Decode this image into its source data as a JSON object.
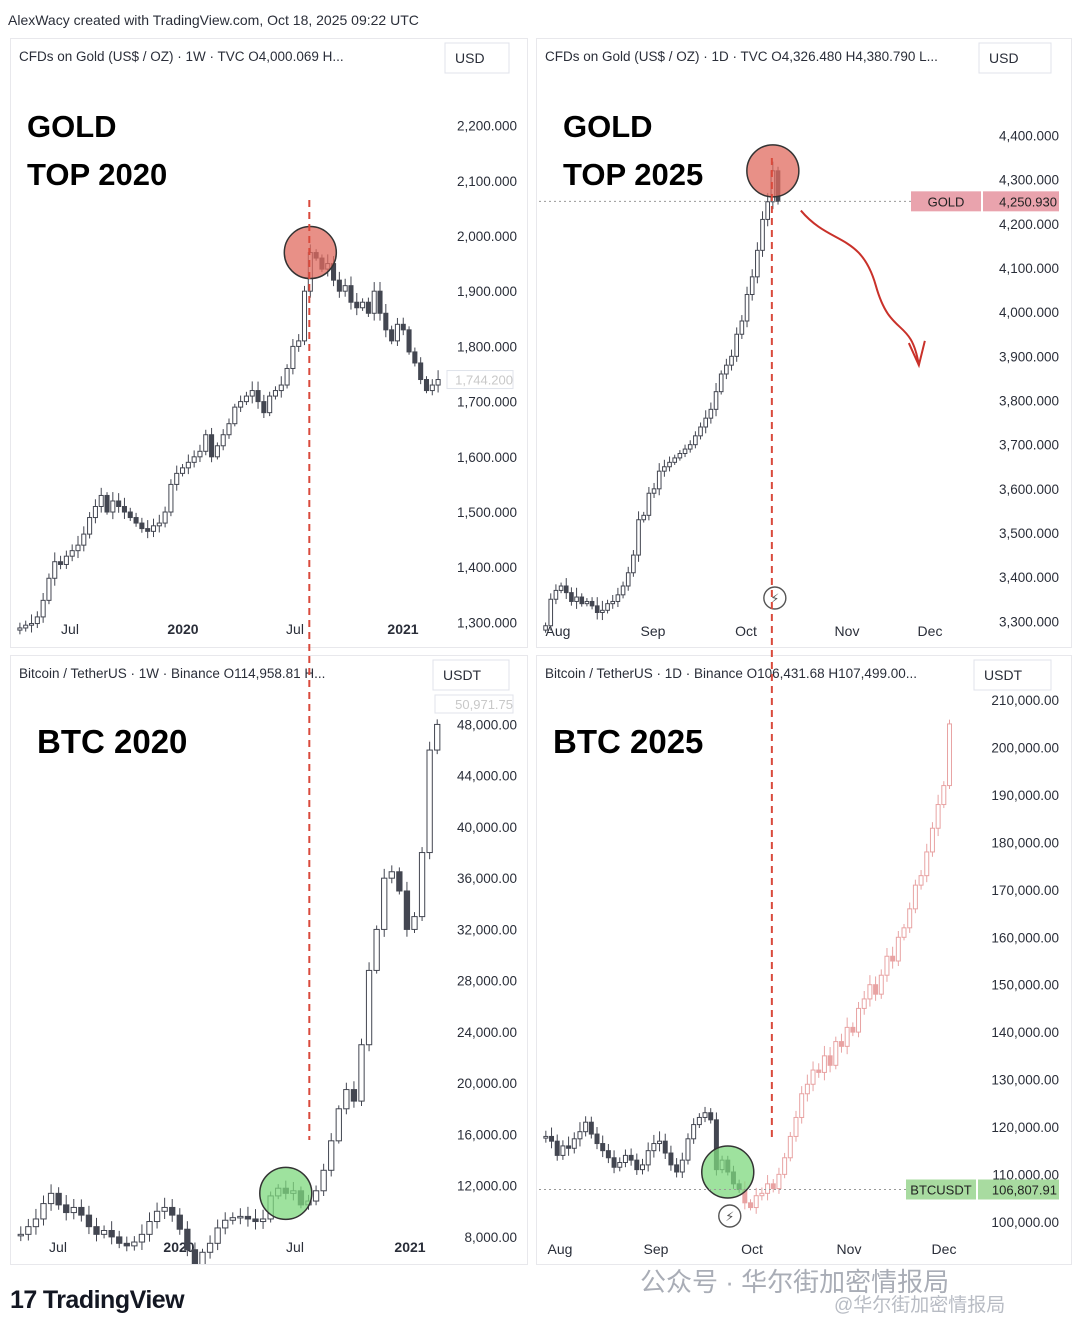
{
  "credit": "AlexWacy created with TradingView.com, Oct 18, 2025 09:22 UTC",
  "footer": {
    "logo_mark": "17",
    "logo": "TradingView",
    "watermark": "公众号 · 华尔街加密情报局",
    "watermark2": "@华尔街加密情报局"
  },
  "colors": {
    "candle": "#434651",
    "forecast": "#e8a3a3",
    "top_marker": "#e06b5f",
    "bottom_marker": "#7ed87e",
    "guide": "#d94a3c",
    "arrow": "#c9312a"
  },
  "chart_data": [
    {
      "id": "gold2020",
      "type": "candlestick",
      "header": "CFDs on Gold (US$ / OZ) · 1W · TVC  O4,000.069  H...",
      "big_label": [
        "GOLD",
        "TOP 2020"
      ],
      "currency": "USD",
      "ylim": [
        1270,
        2230
      ],
      "y_ticks": [
        2200,
        2100,
        2000,
        1900,
        1800,
        1700,
        1600,
        1500,
        1400,
        1300
      ],
      "y_tick_labels": [
        "2,200.000",
        "2,100.000",
        "2,000.000",
        "1,900.000",
        "1,800.000",
        "1,700.000",
        "1,600.000",
        "1,500.000",
        "1,400.000",
        "1,300.000"
      ],
      "x_tick_labels": [
        "Jul",
        "2020",
        "Jul",
        "2021"
      ],
      "price_label": "1,744.200",
      "closes": [
        1290,
        1295,
        1298,
        1310,
        1340,
        1380,
        1410,
        1405,
        1420,
        1430,
        1440,
        1460,
        1490,
        1510,
        1530,
        1500,
        1520,
        1510,
        1500,
        1490,
        1480,
        1470,
        1465,
        1475,
        1480,
        1500,
        1550,
        1570,
        1580,
        1590,
        1600,
        1610,
        1640,
        1600,
        1620,
        1640,
        1660,
        1690,
        1700,
        1710,
        1720,
        1700,
        1680,
        1710,
        1720,
        1730,
        1760,
        1800,
        1810,
        1900,
        1970,
        1960,
        1940,
        1950,
        1920,
        1900,
        1910,
        1880,
        1870,
        1880,
        1860,
        1900,
        1860,
        1830,
        1810,
        1840,
        1830,
        1790,
        1770,
        1740,
        1720,
        1730,
        1740
      ],
      "highlight_index": 50,
      "marker": "top"
    },
    {
      "id": "gold2025",
      "type": "candlestick",
      "header": "CFDs on Gold (US$ / OZ) · 1D · TVC  O4,326.480  H4,380.790  L...",
      "big_label": [
        "GOLD",
        "TOP 2025"
      ],
      "currency": "USD",
      "ylim": [
        3260,
        4460
      ],
      "y_ticks": [
        4400,
        4300,
        4200,
        4100,
        4000,
        3900,
        3800,
        3700,
        3600,
        3500,
        3400,
        3300
      ],
      "y_tick_labels": [
        "4,400.000",
        "4,300.000",
        "4,200.000",
        "4,100.000",
        "4,000.000",
        "3,900.000",
        "3,800.000",
        "3,700.000",
        "3,600.000",
        "3,500.000",
        "3,400.000",
        "3,300.000"
      ],
      "x_tick_labels": [
        "Aug",
        "Sep",
        "Oct",
        "Nov",
        "Dec"
      ],
      "symbol_label": "GOLD",
      "price_label": "4,250.930",
      "price_value": 4250.93,
      "closes": [
        3290,
        3350,
        3370,
        3380,
        3365,
        3345,
        3355,
        3340,
        3345,
        3335,
        3320,
        3325,
        3340,
        3345,
        3360,
        3380,
        3410,
        3450,
        3530,
        3540,
        3590,
        3600,
        3640,
        3650,
        3660,
        3670,
        3680,
        3690,
        3700,
        3720,
        3740,
        3760,
        3780,
        3820,
        3860,
        3880,
        3900,
        3950,
        3980,
        4040,
        4080,
        4140,
        4210,
        4250,
        4320,
        4251
      ],
      "highlight_index": 44,
      "marker": "top",
      "forecast_arrow": true
    },
    {
      "id": "btc2020",
      "type": "candlestick",
      "header": "Bitcoin / TetherUS · 1W · Binance  O114,958.81  H...",
      "big_label": [
        "BTC 2020"
      ],
      "currency": "USDT",
      "ylim": [
        6900,
        51000
      ],
      "y_ticks": [
        48000,
        44000,
        40000,
        36000,
        32000,
        28000,
        24000,
        20000,
        16000,
        12000,
        8000
      ],
      "y_tick_labels": [
        "48,000.00",
        "44,000.00",
        "40,000.00",
        "36,000.00",
        "32,000.00",
        "28,000.00",
        "24,000.00",
        "20,000.00",
        "16,000.00",
        "12,000.00",
        "8,000.00"
      ],
      "x_tick_labels": [
        "Jul",
        "2020",
        "Jul",
        "2021"
      ],
      "price_label": "50,971.75",
      "closes": [
        8200,
        8800,
        9400,
        10600,
        11400,
        10500,
        9900,
        10300,
        9700,
        8800,
        8200,
        8500,
        8000,
        7500,
        7300,
        7600,
        8200,
        9200,
        10000,
        10300,
        9700,
        8600,
        7000,
        5700,
        6800,
        7500,
        8700,
        9300,
        9500,
        9600,
        9400,
        9200,
        9400,
        11200,
        11800,
        11400,
        11600,
        10500,
        10800,
        11600,
        13200,
        15500,
        18000,
        19500,
        18600,
        23000,
        28800,
        32000,
        36000,
        36500,
        35000,
        32000,
        33000,
        38000,
        46000,
        48000
      ],
      "highlight_index": 35,
      "marker": "bottom"
    },
    {
      "id": "btc2025",
      "type": "candlestick",
      "header": "Bitcoin / TetherUS · 1D · Binance  O106,431.68  H107,499.00...",
      "big_label": [
        "BTC 2025"
      ],
      "currency": "USDT",
      "ylim": [
        97000,
        213000
      ],
      "y_ticks": [
        210000,
        200000,
        190000,
        180000,
        170000,
        160000,
        150000,
        140000,
        130000,
        120000,
        110000,
        100000
      ],
      "y_tick_labels": [
        "210,000.00",
        "200,000.00",
        "190,000.00",
        "180,000.00",
        "170,000.00",
        "160,000.00",
        "150,000.00",
        "140,000.00",
        "130,000.00",
        "120,000.00",
        "110,000.00",
        "100,000.00"
      ],
      "x_tick_labels": [
        "Aug",
        "Sep",
        "Oct",
        "Nov",
        "Dec"
      ],
      "symbol_label": "BTCUSDT",
      "price_label": "106,807.91",
      "price_value": 106807.91,
      "closes": [
        118000,
        117000,
        114000,
        116000,
        115500,
        117500,
        119000,
        121000,
        118500,
        116500,
        115000,
        113500,
        111500,
        112500,
        114000,
        113000,
        111000,
        112000,
        115000,
        116500,
        117000,
        114500,
        112000,
        110500,
        113000,
        117500,
        120500,
        122000,
        123000,
        121500,
        111000,
        113000,
        110500,
        108000,
        106800
      ],
      "forecast": [
        104000,
        103000,
        105500,
        106000,
        108000,
        107000,
        110000,
        113500,
        118000,
        122000,
        127000,
        129000,
        132000,
        131500,
        135000,
        133000,
        138000,
        137000,
        141000,
        140000,
        145000,
        147000,
        150000,
        148000,
        152000,
        156000,
        155000,
        160000,
        162000,
        166000,
        171000,
        173000,
        178000,
        183000,
        188000,
        192000,
        205000
      ],
      "highlight_index": 32,
      "marker": "bottom"
    }
  ]
}
